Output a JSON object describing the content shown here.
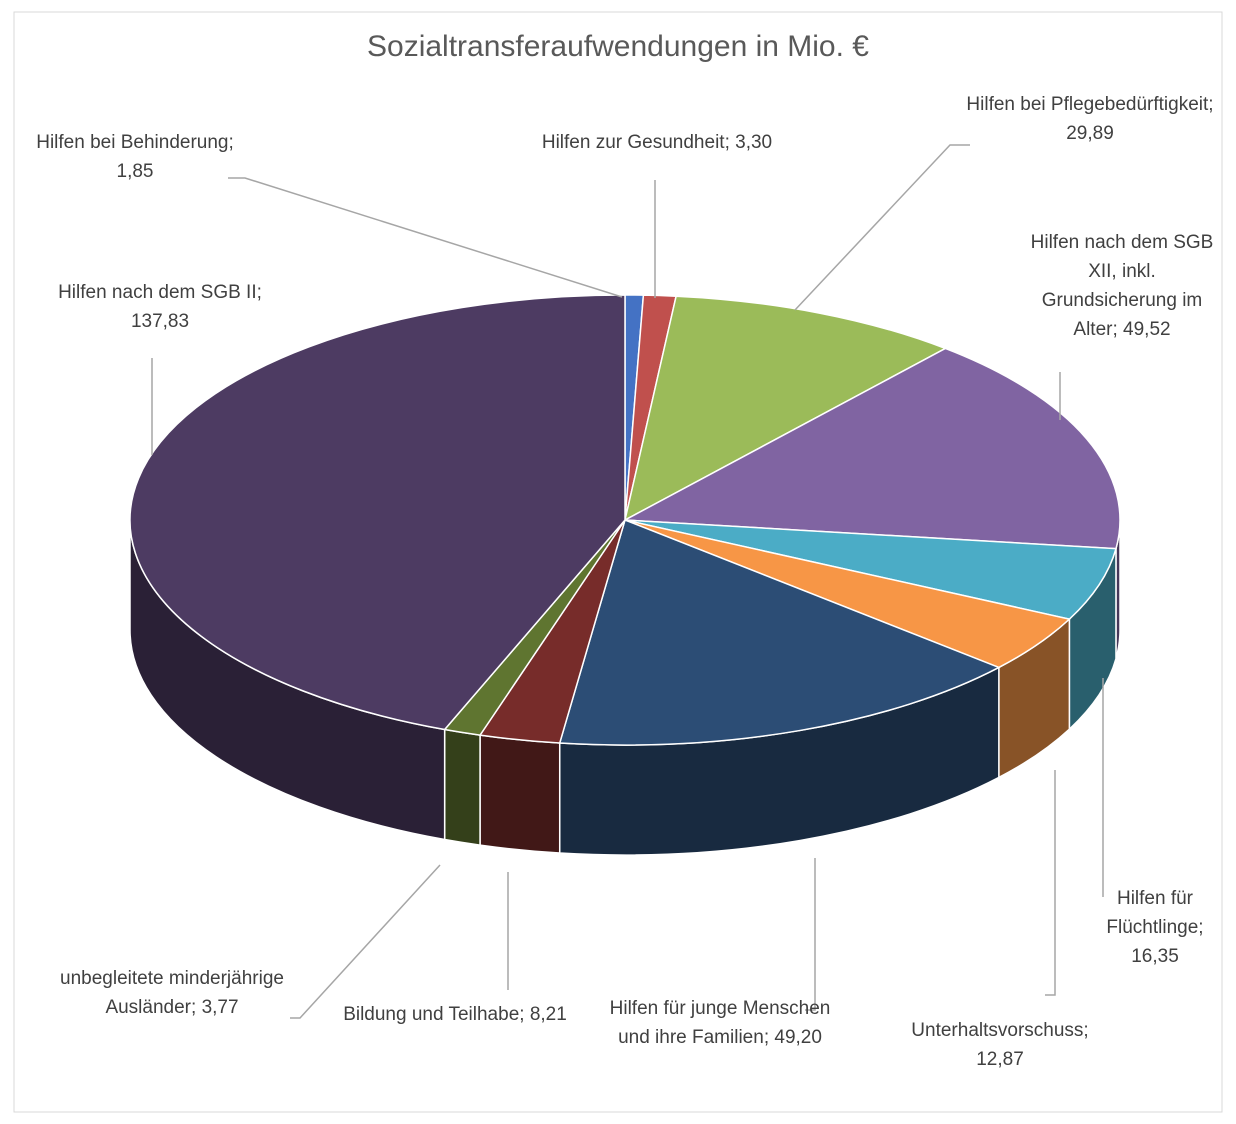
{
  "chart_data": {
    "type": "pie3d",
    "title": "Sozialtransferaufwendungen in Mio. €",
    "separator": "; ",
    "categories": [
      "Hilfen bei Behinderung",
      "Hilfen zur Gesundheit",
      "Hilfen bei Pflegebedürftigkeit",
      "Hilfen nach dem SGB XII, inkl. Grundsicherung im Alter",
      "Hilfen für Flüchtlinge",
      "Unterhaltsvorschuss",
      "Hilfen für junge Menschen und ihre Familien",
      "Bildung und Teilhabe",
      "unbegleitete minderjährige Ausländer",
      "Hilfen nach dem SGB II"
    ],
    "values": [
      1.85,
      3.3,
      29.89,
      49.52,
      16.35,
      12.87,
      49.2,
      8.21,
      3.77,
      137.83
    ],
    "value_labels": [
      "1,85",
      "3,30",
      "29,89",
      "49,52",
      "16,35",
      "12,87",
      "49,20",
      "8,21",
      "3,77",
      "137,83"
    ],
    "colors": [
      "#4472c4",
      "#c0504d",
      "#9bbb59",
      "#8064a2",
      "#4bacc6",
      "#f79646",
      "#2c4d75",
      "#772c2a",
      "#5f7530",
      "#4d3b62"
    ]
  }
}
